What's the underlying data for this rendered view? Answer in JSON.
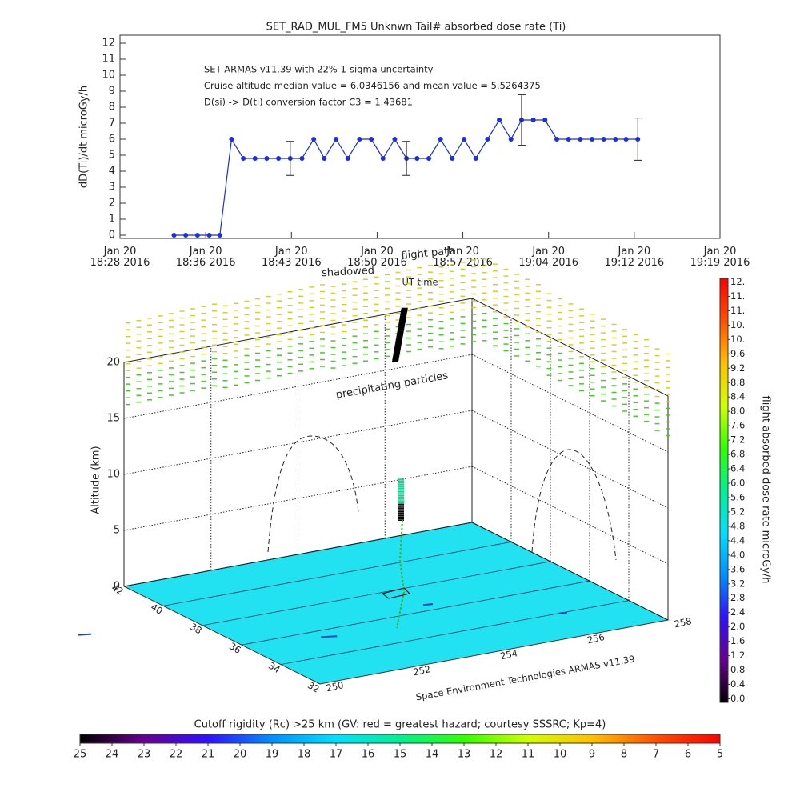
{
  "chart_data": [
    {
      "type": "line",
      "title": "SET_RAD_MUL_FM5 Unknwn Tail#  absorbed dose rate (Ti)",
      "ylabel": "dD(Ti)/dt microGy/h",
      "xlabel": "UT time",
      "annotations": [
        "SET ARMAS v11.39 with 22% 1-sigma uncertainty",
        "Cruise altitude median value = 6.0346156 and mean value = 5.5264375",
        "D(si) -> D(ti) conversion factor C3 = 1.43681"
      ],
      "xlim": [
        28.3,
        79.4
      ],
      "xticks": [
        {
          "value": 28.3,
          "label": "Jan 20\n18:28 2016"
        },
        {
          "value": 35.6,
          "label": "Jan 20\n18:36 2016"
        },
        {
          "value": 42.9,
          "label": "Jan 20\n18:43 2016"
        },
        {
          "value": 50.2,
          "label": "Jan 20\n18:50 2016"
        },
        {
          "value": 57.5,
          "label": "Jan 20\n18:57 2016"
        },
        {
          "value": 64.8,
          "label": "Jan 20\n19:04 2016"
        },
        {
          "value": 72.1,
          "label": "Jan 20\n19:12 2016"
        },
        {
          "value": 79.4,
          "label": "Jan 20\n19:19 2016"
        }
      ],
      "ylim": [
        -0.2,
        12.5
      ],
      "yticks": [
        0,
        1,
        2,
        3,
        4,
        5,
        6,
        7,
        8,
        9,
        10,
        11,
        12
      ],
      "x": [
        32.9,
        33.9,
        34.9,
        35.9,
        36.8,
        37.8,
        38.8,
        39.8,
        40.8,
        41.8,
        42.8,
        43.8,
        44.8,
        45.7,
        46.7,
        47.7,
        48.7,
        49.7,
        50.7,
        51.7,
        52.7,
        53.6,
        54.6,
        55.6,
        56.6,
        57.6,
        58.6,
        59.6,
        60.6,
        61.6,
        62.5,
        63.5,
        64.5,
        65.5,
        66.5,
        67.5,
        68.5,
        69.5,
        70.5,
        71.4,
        72.4
      ],
      "series": [
        {
          "color": "#1a2fe0",
          "values": [
            0,
            0,
            0,
            0,
            0,
            6,
            4.8,
            4.8,
            4.8,
            4.8,
            4.8,
            4.8,
            6,
            4.8,
            6,
            4.8,
            6,
            6,
            4.8,
            6,
            4.8,
            4.8,
            4.8,
            6,
            4.8,
            6,
            4.8,
            6,
            7.2,
            6,
            7.2,
            7.2,
            7.2,
            6,
            6,
            6,
            6,
            6,
            6,
            6,
            6
          ],
          "errors": [
            null,
            null,
            null,
            null,
            null,
            null,
            null,
            null,
            null,
            null,
            1.06,
            null,
            null,
            null,
            null,
            null,
            null,
            null,
            null,
            null,
            1.06,
            null,
            null,
            null,
            null,
            null,
            null,
            null,
            null,
            null,
            1.58,
            null,
            null,
            null,
            null,
            null,
            null,
            null,
            null,
            null,
            1.32
          ]
        }
      ]
    },
    {
      "type": "surface3d",
      "zlabel": "Altitude (km)",
      "zlim": [
        0,
        20
      ],
      "zticks": [
        0,
        5,
        10,
        15,
        20
      ],
      "xlim": [
        250,
        258
      ],
      "xticks": [
        250,
        252,
        254,
        256,
        258
      ],
      "ylim": [
        32,
        42
      ],
      "yticks": [
        32,
        34,
        36,
        38,
        40,
        42
      ],
      "floor_color": "#22e2f2",
      "annotations": [
        "precipitating particles",
        "shadowed",
        "flight path"
      ],
      "credit": "Space Environment Technologies ARMAS v11.39"
    },
    {
      "type": "colorbar",
      "orientation": "vertical",
      "label": "flight absorbed dose rate microGy/h",
      "lim": [
        -0.1,
        11.7
      ],
      "ticks": [
        {
          "value": 0,
          "label": "0.0"
        },
        0.4,
        0.8,
        1.2,
        1.6,
        {
          "value": 2,
          "label": "2.0"
        },
        2.4,
        2.8,
        3.2,
        3.6,
        {
          "value": 4,
          "label": "4.0"
        },
        4.4,
        4.8,
        5.2,
        5.6,
        {
          "value": 6,
          "label": "6.0"
        },
        6.4,
        6.8,
        7.2,
        7.6,
        {
          "value": 8,
          "label": "8.0"
        },
        8.4,
        8.8,
        9.2,
        9.6,
        {
          "value": 10,
          "label": "10."
        },
        {
          "value": 10.4,
          "label": "10."
        },
        {
          "value": 10.8,
          "label": "11."
        },
        {
          "value": 11.2,
          "label": "11."
        },
        {
          "value": 11.6,
          "label": "12."
        }
      ],
      "colors": [
        "#000000",
        "#6a0090",
        "#3010ff",
        "#0090ff",
        "#00e0ff",
        "#00f090",
        "#30ff00",
        "#d0ff00",
        "#ffc000",
        "#ff5000",
        "#ff0000"
      ]
    },
    {
      "type": "colorbar",
      "orientation": "horizontal",
      "label": "Cutoff rigidity (Rc) >25 km (GV: red = greatest hazard; courtesy SSSRC; Kp=4)",
      "lim": [
        25,
        5
      ],
      "ticks": [
        25,
        24,
        23,
        22,
        21,
        20,
        19,
        18,
        17,
        16,
        15,
        14,
        13,
        12,
        11,
        10,
        9,
        8,
        7,
        6,
        5
      ],
      "colors": [
        "#000000",
        "#6a0090",
        "#3010ff",
        "#0090ff",
        "#00e0ff",
        "#00f090",
        "#30ff00",
        "#d0ff00",
        "#ffc000",
        "#ff5000",
        "#ff0000"
      ]
    }
  ]
}
